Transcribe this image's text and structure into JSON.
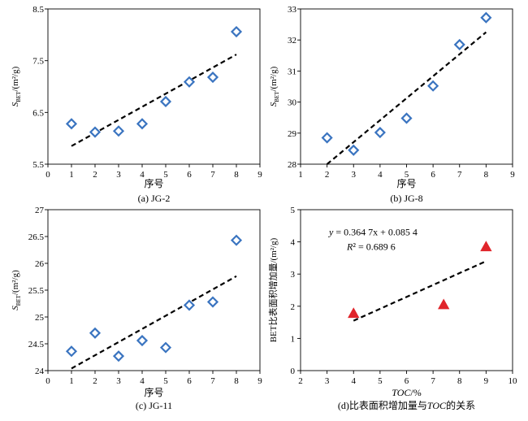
{
  "colors": {
    "diamond": "#3a74c0",
    "triangle": "#e0252b",
    "trend": "#000000",
    "axis": "#000000"
  },
  "chart_data": [
    {
      "type": "scatter",
      "caption": "(a) JG-2",
      "xlabel": "序号",
      "ylabel": "S_BET/(m²/g)",
      "xlim": [
        0,
        9
      ],
      "ylim": [
        5.5,
        8.5
      ],
      "xticks": [
        "0",
        "1",
        "2",
        "3",
        "4",
        "5",
        "6",
        "7",
        "8",
        "9"
      ],
      "yticks": [
        "5.5",
        "6.5",
        "7.5",
        "8.5"
      ],
      "ytick_values": [
        5.5,
        6.5,
        7.5,
        8.5
      ],
      "marker": "diamond",
      "points": [
        [
          1,
          6.28
        ],
        [
          2,
          6.12
        ],
        [
          3,
          6.14
        ],
        [
          4,
          6.28
        ],
        [
          5,
          6.71
        ],
        [
          6,
          7.09
        ],
        [
          7,
          7.18
        ],
        [
          8,
          8.06
        ]
      ],
      "trend": [
        [
          1,
          5.85
        ],
        [
          8,
          7.62
        ]
      ]
    },
    {
      "type": "scatter",
      "caption": "(b) JG-8",
      "xlabel": "序号",
      "ylabel": "S_BET/(m²/g)",
      "xlim": [
        1,
        9
      ],
      "ylim": [
        28,
        33
      ],
      "xticks": [
        "1",
        "2",
        "3",
        "4",
        "5",
        "6",
        "7",
        "8",
        "9"
      ],
      "yticks": [
        "28",
        "29",
        "30",
        "31",
        "32",
        "33"
      ],
      "ytick_values": [
        28,
        29,
        30,
        31,
        32,
        33
      ],
      "marker": "diamond",
      "points": [
        [
          2,
          28.85
        ],
        [
          3,
          28.45
        ],
        [
          4,
          29.02
        ],
        [
          5,
          29.48
        ],
        [
          6,
          30.52
        ],
        [
          7,
          31.85
        ],
        [
          8,
          32.72
        ]
      ],
      "trend": [
        [
          2,
          28.0
        ],
        [
          8,
          32.25
        ]
      ]
    },
    {
      "type": "scatter",
      "caption": "(c) JG-11",
      "xlabel": "序号",
      "ylabel": "S_BET/(m²/g)",
      "xlim": [
        0,
        9
      ],
      "ylim": [
        24,
        27
      ],
      "xticks": [
        "0",
        "1",
        "2",
        "3",
        "4",
        "5",
        "6",
        "7",
        "8",
        "9"
      ],
      "yticks": [
        "24",
        "24.5",
        "25",
        "25.5",
        "26",
        "26.5",
        "27"
      ],
      "ytick_values": [
        24,
        24.5,
        25,
        25.5,
        26,
        26.5,
        27
      ],
      "marker": "diamond",
      "points": [
        [
          1,
          24.36
        ],
        [
          2,
          24.7
        ],
        [
          3,
          24.27
        ],
        [
          4,
          24.56
        ],
        [
          5,
          24.43
        ],
        [
          6,
          25.22
        ],
        [
          7,
          25.28
        ],
        [
          8,
          26.43
        ]
      ],
      "trend": [
        [
          1,
          24.04
        ],
        [
          8,
          25.76
        ]
      ]
    },
    {
      "type": "scatter",
      "caption": "(d)比表面积增加量与TOC的关系",
      "xlabel": "TOC/%",
      "ylabel": "BET比表面积增加量/(m²/g)",
      "xlim": [
        2,
        10
      ],
      "ylim": [
        0,
        5
      ],
      "xticks": [
        "2",
        "3",
        "4",
        "5",
        "6",
        "7",
        "8",
        "9",
        "10"
      ],
      "yticks": [
        "0",
        "1",
        "2",
        "3",
        "4",
        "5"
      ],
      "ytick_values": [
        0,
        1,
        2,
        3,
        4,
        5
      ],
      "marker": "triangle",
      "points": [
        [
          4.0,
          1.78
        ],
        [
          7.4,
          2.05
        ],
        [
          9.0,
          3.85
        ]
      ],
      "trend": [
        [
          4.0,
          1.55
        ],
        [
          9.0,
          3.4
        ]
      ],
      "annotation": [
        "y = 0.364 7x + 0.085 4",
        "R² = 0.689 6"
      ]
    }
  ]
}
